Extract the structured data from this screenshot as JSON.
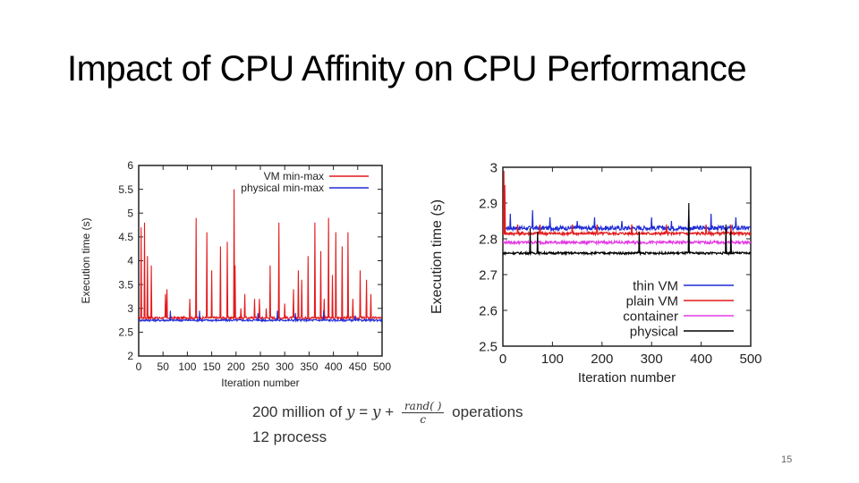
{
  "slide": {
    "title": "Impact of CPU Affinity on CPU Performance",
    "page_number": "15"
  },
  "description": {
    "prefix": "200 million of",
    "formula_y1": "y",
    "formula_eq": "=",
    "formula_y2": "y",
    "formula_plus": "+",
    "formula_num": "rand( )",
    "formula_den": "c",
    "suffix": "operations",
    "process": "12 process"
  },
  "chart_data": [
    {
      "type": "line",
      "xlabel": "Iteration number",
      "ylabel": "Execution time (s)",
      "xlim": [
        0,
        500
      ],
      "ylim": [
        2,
        6
      ],
      "xticks": [
        0,
        50,
        100,
        150,
        200,
        250,
        300,
        350,
        400,
        450,
        500
      ],
      "yticks": [
        2,
        2.5,
        3,
        3.5,
        4,
        4.5,
        5,
        5.5,
        6
      ],
      "ytick_labels": [
        "2",
        "2.5",
        "3",
        "3.5",
        "4",
        "4.5",
        "5",
        "5.5",
        "6"
      ],
      "legend_position": "top-right",
      "series": [
        {
          "name": "VM min-max",
          "color": "#e31a1c",
          "baseline": 2.8,
          "spikes": [
            [
              5,
              4.7
            ],
            [
              12,
              4.8
            ],
            [
              18,
              4.1
            ],
            [
              26,
              3.9
            ],
            [
              55,
              3.3
            ],
            [
              58,
              3.4
            ],
            [
              105,
              3.2
            ],
            [
              118,
              4.9
            ],
            [
              140,
              4.6
            ],
            [
              150,
              3.8
            ],
            [
              168,
              4.3
            ],
            [
              182,
              4.4
            ],
            [
              196,
              5.5
            ],
            [
              198,
              3.9
            ],
            [
              210,
              3.0
            ],
            [
              218,
              3.3
            ],
            [
              238,
              3.2
            ],
            [
              248,
              3.2
            ],
            [
              262,
              3.0
            ],
            [
              270,
              3.9
            ],
            [
              288,
              4.8
            ],
            [
              300,
              3.1
            ],
            [
              318,
              3.4
            ],
            [
              328,
              3.8
            ],
            [
              335,
              3.6
            ],
            [
              348,
              4.1
            ],
            [
              362,
              4.8
            ],
            [
              374,
              4.2
            ],
            [
              381,
              3.2
            ],
            [
              390,
              4.9
            ],
            [
              398,
              3.7
            ],
            [
              405,
              4.6
            ],
            [
              418,
              4.3
            ],
            [
              430,
              4.6
            ],
            [
              440,
              3.2
            ],
            [
              455,
              3.8
            ],
            [
              468,
              3.6
            ],
            [
              477,
              3.3
            ]
          ]
        },
        {
          "name": "physical min-max",
          "color": "#1f2bd6",
          "baseline": 2.75,
          "spikes": [
            [
              65,
              2.95
            ],
            [
              125,
              2.95
            ],
            [
              245,
              2.9
            ],
            [
              285,
              2.95
            ],
            [
              322,
              2.9
            ],
            [
              380,
              2.95
            ],
            [
              445,
              2.85
            ]
          ]
        }
      ]
    },
    {
      "type": "line",
      "xlabel": "Iteration number",
      "ylabel": "Execution time (s)",
      "xlim": [
        0,
        500
      ],
      "ylim": [
        2.5,
        3
      ],
      "xticks": [
        0,
        100,
        200,
        300,
        400,
        500
      ],
      "yticks": [
        2.5,
        2.6,
        2.7,
        2.8,
        2.9,
        3
      ],
      "ytick_labels": [
        "2.5",
        "2.6",
        "2.7",
        "2.8",
        "2.9",
        "3"
      ],
      "legend_position": "bottom-right",
      "series": [
        {
          "name": "thin VM",
          "color": "#1f2bd6",
          "baseline": 2.83,
          "spikes": [
            [
              15,
              2.87
            ],
            [
              60,
              2.88
            ],
            [
              95,
              2.86
            ],
            [
              150,
              2.85
            ],
            [
              185,
              2.86
            ],
            [
              240,
              2.85
            ],
            [
              300,
              2.86
            ],
            [
              340,
              2.85
            ],
            [
              375,
              2.88
            ],
            [
              420,
              2.87
            ],
            [
              470,
              2.86
            ]
          ]
        },
        {
          "name": "plain VM",
          "color": "#e31a1c",
          "baseline": 2.815,
          "spikes": [
            [
              2,
              2.99
            ],
            [
              4,
              2.95
            ],
            [
              30,
              2.84
            ],
            [
              75,
              2.84
            ],
            [
              140,
              2.84
            ],
            [
              190,
              2.84
            ],
            [
              260,
              2.84
            ],
            [
              330,
              2.84
            ],
            [
              410,
              2.84
            ],
            [
              460,
              2.84
            ]
          ]
        },
        {
          "name": "container",
          "color": "#e339e3",
          "baseline": 2.79,
          "spikes": []
        },
        {
          "name": "physical",
          "color": "#000000",
          "baseline": 2.76,
          "spikes": [
            [
              55,
              2.83
            ],
            [
              70,
              2.82
            ],
            [
              275,
              2.82
            ],
            [
              375,
              2.9
            ],
            [
              450,
              2.84
            ],
            [
              460,
              2.82
            ]
          ]
        }
      ]
    }
  ]
}
